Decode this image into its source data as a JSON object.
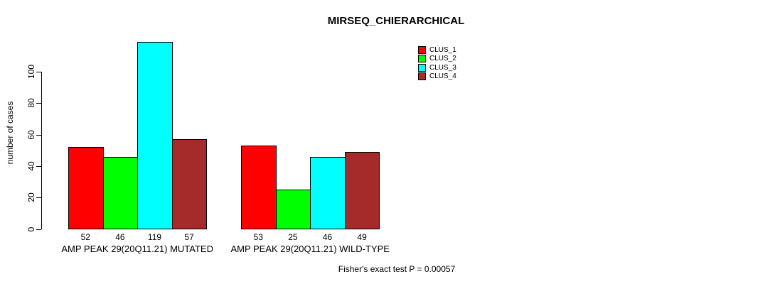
{
  "title": "MIRSEQ_CHIERARCHICAL",
  "annotation": "Fisher's exact test P = 0.00057",
  "chart_data": {
    "type": "bar",
    "grouped": true,
    "title": "MIRSEQ_CHIERARCHICAL",
    "xlabel": "",
    "ylabel": "number of cases",
    "ylim": [
      0,
      100
    ],
    "yticks": [
      "0",
      "20",
      "40",
      "60",
      "80",
      "100"
    ],
    "grid": false,
    "legend_position": "top-right",
    "bar_value_labels_shown": true,
    "categories": [
      "AMP PEAK 29(20Q11.21) MUTATED",
      "AMP PEAK 29(20Q11.21) WILD-TYPE"
    ],
    "series": [
      {
        "name": "CLUS_1",
        "color": "#FF0000",
        "values": [
          52,
          53
        ]
      },
      {
        "name": "CLUS_2",
        "color": "#00FF00",
        "values": [
          46,
          25
        ]
      },
      {
        "name": "CLUS_3",
        "color": "#00FFFF",
        "values": [
          119,
          46
        ]
      },
      {
        "name": "CLUS_4",
        "color": "#A52A2A",
        "values": [
          57,
          49
        ]
      }
    ]
  }
}
